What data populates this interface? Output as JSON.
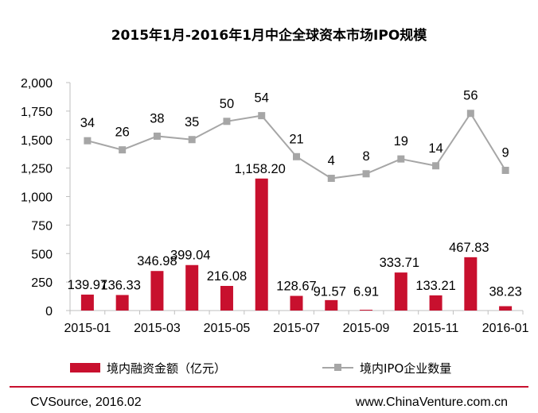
{
  "chart_data": {
    "type": "bar",
    "title": "2015年1月-2016年1月中企全球资本市场IPO规模",
    "categories": [
      "2015-01",
      "2015-02",
      "2015-03",
      "2015-04",
      "2015-05",
      "2015-06",
      "2015-07",
      "2015-08",
      "2015-09",
      "2015-10",
      "2015-11",
      "2015-12",
      "2016-01"
    ],
    "x_tick_labels": [
      "2015-01",
      "2015-03",
      "2015-05",
      "2015-07",
      "2015-09",
      "2015-11",
      "2016-01"
    ],
    "y_ticks": [
      "0",
      "250",
      "500",
      "750",
      "1,000",
      "1,250",
      "1,500",
      "1,750",
      "2,000"
    ],
    "ylim": [
      0,
      2000
    ],
    "series": [
      {
        "name": "境内融资金额（亿元）",
        "type": "bar",
        "color": "#c8102e",
        "values": [
          139.97,
          136.33,
          346.98,
          399.04,
          216.08,
          1158.2,
          128.67,
          91.57,
          6.91,
          333.71,
          133.21,
          467.83,
          38.23
        ],
        "labels": [
          "139.97",
          "136.33",
          "346.98",
          "399.04",
          "216.08",
          "1,158.20",
          "128.67",
          "91.57",
          "6.91",
          "333.71",
          "133.21",
          "467.83",
          "38.23"
        ]
      },
      {
        "name": "境内IPO企业数量",
        "type": "line",
        "color": "#a6a6a6",
        "values": [
          34,
          26,
          38,
          35,
          50,
          54,
          21,
          4,
          8,
          19,
          14,
          56,
          9
        ],
        "labels": [
          "34",
          "26",
          "38",
          "35",
          "50",
          "54",
          "21",
          "4",
          "8",
          "19",
          "14",
          "56",
          "9"
        ],
        "plotted_values_on_left_axis": [
          1490,
          1410,
          1530,
          1500,
          1660,
          1710,
          1350,
          1160,
          1200,
          1330,
          1270,
          1730,
          1230
        ]
      }
    ],
    "legend_position": "bottom",
    "grid": false
  },
  "footer": {
    "source": "CVSource, 2016.02",
    "website": "www.ChinaVenture.com.cn"
  },
  "colors": {
    "bar": "#c8102e",
    "line": "#a6a6a6",
    "marker": "#a6a6a6",
    "footer_rule": "#c8102e",
    "axis": "#bfbfbf"
  }
}
